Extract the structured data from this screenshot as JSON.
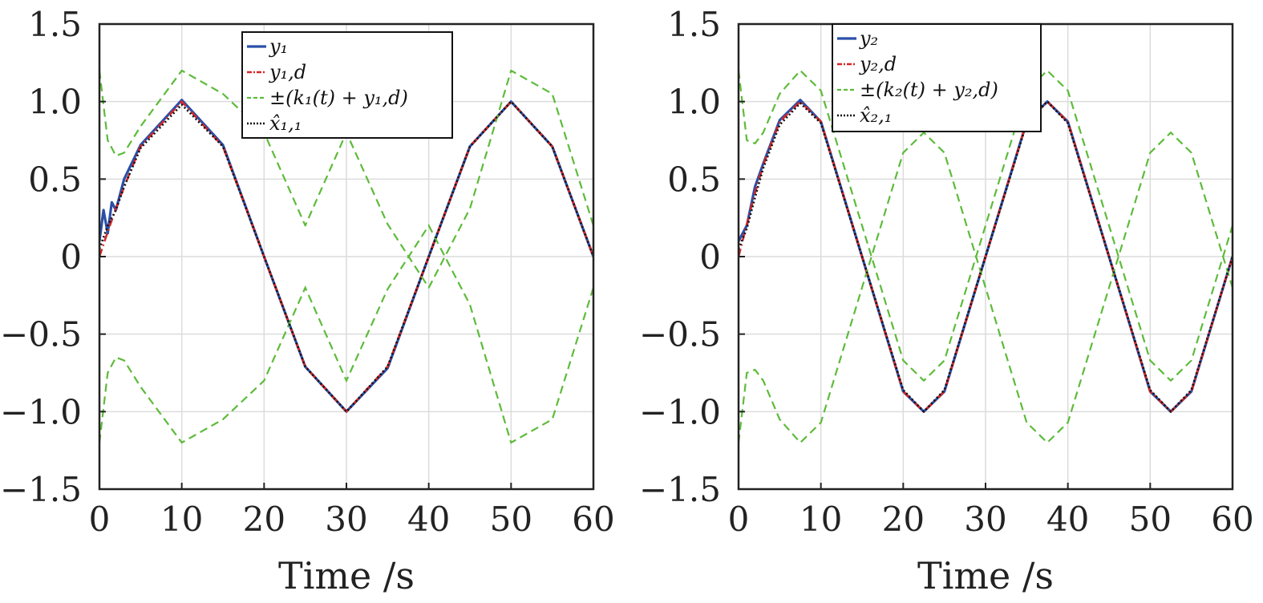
{
  "chart_data": [
    {
      "type": "line",
      "xlabel": "Time /s",
      "ylabel": "",
      "xlim": [
        0,
        60
      ],
      "ylim": [
        -1.5,
        1.5
      ],
      "xticks": [
        0,
        10,
        20,
        30,
        40,
        50,
        60
      ],
      "xtick_labels": [
        "0",
        "10",
        "20",
        "30",
        "40",
        "50",
        "60"
      ],
      "yticks": [
        1.5,
        1.0,
        0.5,
        0,
        -0.5,
        -1.0,
        -1.5
      ],
      "ytick_labels": [
        "1.5",
        "1.0",
        "0.5",
        "0",
        "−0.5",
        "−1.0",
        "−1.5"
      ],
      "grid": true,
      "legend_position": "top-center",
      "period_s": 40,
      "series": [
        {
          "name": "y₁",
          "color": "#2b4fa8",
          "style": "solid",
          "x": [
            0,
            0.5,
            1,
            1.5,
            2,
            3,
            5,
            10,
            15,
            20,
            25,
            30,
            35,
            40,
            45,
            50,
            55,
            60
          ],
          "y": [
            0.1,
            0.3,
            0.15,
            0.35,
            0.3,
            0.5,
            0.72,
            1.01,
            0.72,
            0.0,
            -0.71,
            -1.0,
            -0.72,
            0.0,
            0.71,
            1.0,
            0.71,
            0.0
          ]
        },
        {
          "name": "y₁,d",
          "color": "#d62728",
          "style": "dashdot",
          "x": [
            0,
            1,
            2,
            3,
            5,
            10,
            15,
            20,
            25,
            30,
            35,
            40,
            45,
            50,
            55,
            60
          ],
          "y": [
            0.0,
            0.16,
            0.31,
            0.45,
            0.71,
            1.0,
            0.71,
            0.0,
            -0.71,
            -1.0,
            -0.71,
            0.0,
            0.71,
            1.0,
            0.71,
            0.0
          ]
        },
        {
          "name": "±(k₁(t) + y₁,d)",
          "color": "#5dbb3a",
          "style": "dashed",
          "x": [
            0,
            1,
            2,
            3,
            5,
            10,
            15,
            20,
            25,
            30,
            35,
            40,
            45,
            50,
            55,
            60
          ],
          "y": [
            1.2,
            0.75,
            0.65,
            0.67,
            0.84,
            1.2,
            1.05,
            0.8,
            0.2,
            0.8,
            0.21,
            -0.2,
            0.31,
            1.2,
            1.05,
            0.2
          ]
        },
        {
          "name": "x̂₁,₁",
          "color": "#111111",
          "style": "dotted",
          "x": [
            0,
            1,
            2,
            3,
            5,
            10,
            15,
            20,
            25,
            30,
            35,
            40,
            45,
            50,
            55,
            60
          ],
          "y": [
            0.05,
            0.2,
            0.3,
            0.45,
            0.7,
            0.98,
            0.71,
            0.0,
            -0.71,
            -1.0,
            -0.71,
            0.0,
            0.71,
            1.0,
            0.71,
            0.0
          ]
        }
      ]
    },
    {
      "type": "line",
      "xlabel": "Time /s",
      "ylabel": "",
      "xlim": [
        0,
        60
      ],
      "ylim": [
        -1.5,
        1.5
      ],
      "xticks": [
        0,
        10,
        20,
        30,
        40,
        50,
        60
      ],
      "xtick_labels": [
        "0",
        "10",
        "20",
        "30",
        "40",
        "50",
        "60"
      ],
      "yticks": [
        1.5,
        1.0,
        0.5,
        0,
        -0.5,
        -1.0,
        -1.5
      ],
      "ytick_labels": [
        "1.5",
        "1.0",
        "0.5",
        "0",
        "−0.5",
        "−1.0",
        "−1.5"
      ],
      "grid": true,
      "legend_position": "top-center",
      "period_s": 30,
      "series": [
        {
          "name": "y₂",
          "color": "#2b4fa8",
          "style": "solid",
          "x": [
            0,
            1,
            2,
            3,
            5,
            7.5,
            10,
            15,
            20,
            22.5,
            25,
            30,
            35,
            37.5,
            40,
            45,
            50,
            52.5,
            55,
            60
          ],
          "y": [
            0.1,
            0.2,
            0.45,
            0.6,
            0.88,
            1.01,
            0.87,
            0.0,
            -0.87,
            -1.0,
            -0.87,
            0.0,
            0.87,
            1.0,
            0.87,
            0.0,
            -0.87,
            -1.0,
            -0.87,
            0.0
          ]
        },
        {
          "name": "y₂,d",
          "color": "#d62728",
          "style": "dashdot",
          "x": [
            0,
            1,
            2,
            3,
            5,
            7.5,
            10,
            15,
            20,
            22.5,
            25,
            30,
            35,
            37.5,
            40,
            45,
            50,
            52.5,
            55,
            60
          ],
          "y": [
            0.0,
            0.21,
            0.41,
            0.59,
            0.87,
            1.0,
            0.87,
            0.0,
            -0.87,
            -1.0,
            -0.87,
            0.0,
            0.87,
            1.0,
            0.87,
            0.0,
            -0.87,
            -1.0,
            -0.87,
            0.0
          ]
        },
        {
          "name": "±(k₂(t) + y₂,d)",
          "color": "#5dbb3a",
          "style": "dashed",
          "x": [
            0,
            1,
            2,
            3,
            5,
            7.5,
            10,
            15,
            20,
            22.5,
            25,
            30,
            35,
            37.5,
            40,
            45,
            50,
            52.5,
            55,
            60
          ],
          "y": [
            1.2,
            0.75,
            0.73,
            0.8,
            1.05,
            1.2,
            1.07,
            0.2,
            -0.67,
            -0.8,
            -0.67,
            0.2,
            1.07,
            1.2,
            1.07,
            0.2,
            -0.67,
            -0.8,
            -0.67,
            0.2
          ]
        },
        {
          "name": "x̂₂,₁",
          "color": "#111111",
          "style": "dotted",
          "x": [
            0,
            1,
            2,
            3,
            5,
            7.5,
            10,
            15,
            20,
            22.5,
            25,
            30,
            35,
            37.5,
            40,
            45,
            50,
            52.5,
            55,
            60
          ],
          "y": [
            0.05,
            0.18,
            0.38,
            0.57,
            0.85,
            0.99,
            0.86,
            0.0,
            -0.86,
            -1.0,
            -0.86,
            0.0,
            0.86,
            1.0,
            0.86,
            0.0,
            -0.86,
            -1.0,
            -0.86,
            0.0
          ]
        }
      ]
    }
  ]
}
